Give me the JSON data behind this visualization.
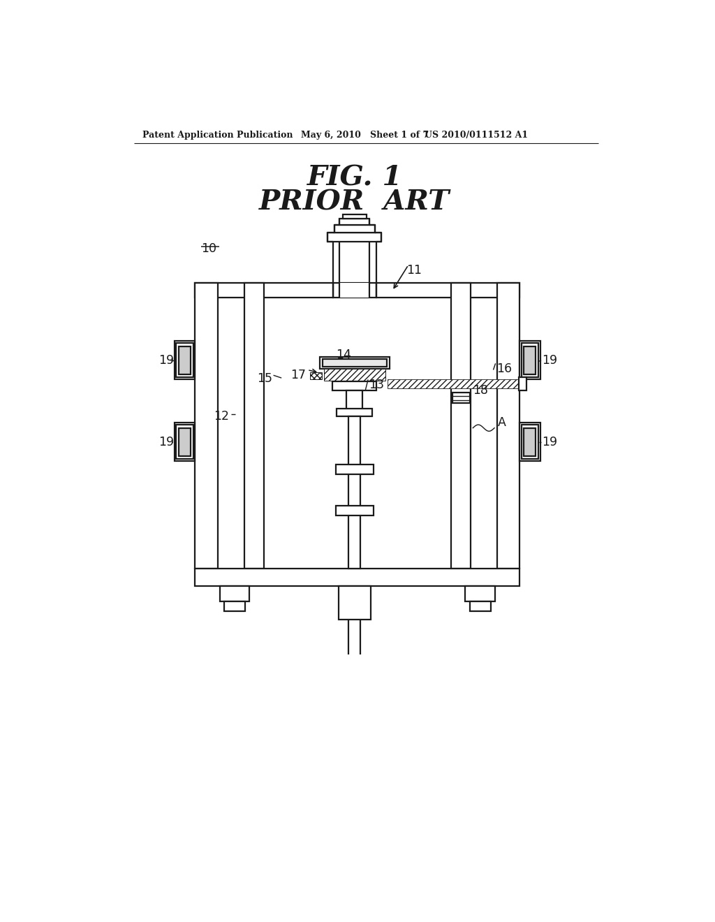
{
  "bg_color": "#ffffff",
  "line_color": "#1a1a1a",
  "header_left": "Patent Application Publication",
  "header_mid": "May 6, 2010   Sheet 1 of 7",
  "header_right": "US 2010/0111512 A1",
  "title1": "FIG. 1",
  "title2": "PRIOR  ART",
  "lw_main": 1.6,
  "lw_thin": 1.0,
  "lw_hatch": 0.8
}
